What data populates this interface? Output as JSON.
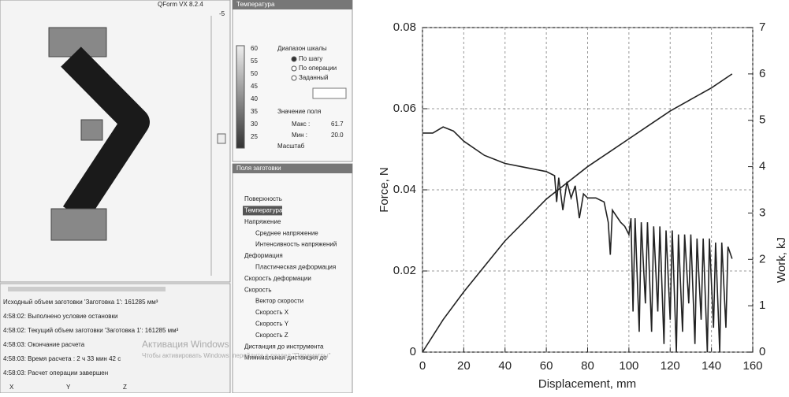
{
  "screenshot": {
    "app_title": "QForm VX 8.2.4",
    "slider_value": "-5",
    "panel_title": "Температура",
    "scale_labels": [
      60,
      55,
      50,
      45,
      40,
      35,
      30,
      25
    ],
    "range_title": "Диапазон шкалы",
    "range_options": [
      "По шагу",
      "По операции",
      "Заданный"
    ],
    "field_value_title": "Значение поля",
    "max_label": "Макс :",
    "max_value": "61.7",
    "min_label": "Мин :",
    "min_value": "20.0",
    "scale_label": "Масштаб",
    "fields_title": "Поля заготовки",
    "tree": [
      "Поверхность",
      "Температура",
      "Напряжение",
      "Среднее напряжение",
      "Интенсивность напряжений",
      "Деформация",
      "Пластическая деформация",
      "Скорость деформации",
      "Скорость",
      "Вектор скорости",
      "Скорость X",
      "Скорость Y",
      "Скорость Z",
      "Дистанция до инструмента",
      "Минимальная дистанция до"
    ],
    "log": [
      "Исходный объем заготовки 'Заготовка 1': 161285 мм³",
      "4:58:02: Выполнено условие остановки",
      "4:58:02: Текущий объем заготовки 'Заготовка 1': 161285 мм³",
      "4:58:03: Окончание расчета",
      "4:58:03: Время расчета : 2 ч 33 мин 42 с",
      "4:58:03: Расчет операции завершен"
    ],
    "watermark": [
      "Активация Windows",
      "Чтобы активировать Windows, перейдите в раздел \"Параметры\""
    ],
    "columns": [
      "X",
      "Y",
      "Z"
    ]
  },
  "chart_data": {
    "type": "line",
    "xlabel": "Displacement, mm",
    "ylabel": "Force, N",
    "y2label": "Work, kJ",
    "xlim": [
      0,
      160
    ],
    "xticks": [
      0,
      20,
      40,
      60,
      80,
      100,
      120,
      140,
      160
    ],
    "ylim": [
      0,
      0.08
    ],
    "yticks": [
      0,
      0.02,
      0.04,
      0.06,
      0.08
    ],
    "y2lim": [
      0,
      7
    ],
    "y2ticks": [
      0,
      1,
      2,
      3,
      4,
      5,
      6,
      7
    ],
    "grid": true,
    "series": [
      {
        "color": "#222222",
        "axis": "y",
        "x": [
          0,
          5,
          10,
          15,
          20,
          30,
          40,
          50,
          60,
          64,
          65,
          66,
          68,
          70,
          72,
          74,
          76,
          78,
          80,
          84,
          88,
          90,
          91,
          92,
          96,
          98,
          100,
          101,
          102,
          103,
          105,
          106,
          108,
          109,
          111,
          112,
          114,
          115,
          117,
          118,
          120,
          121,
          123,
          124,
          126,
          127,
          129,
          130,
          132,
          133,
          135,
          136,
          138,
          139,
          141,
          142,
          144,
          145,
          147,
          148,
          150
        ],
        "values": [
          0.054,
          0.054,
          0.0555,
          0.0545,
          0.052,
          0.0485,
          0.0465,
          0.0455,
          0.0445,
          0.0435,
          0.037,
          0.043,
          0.035,
          0.042,
          0.038,
          0.041,
          0.033,
          0.039,
          0.038,
          0.038,
          0.037,
          0.032,
          0.024,
          0.035,
          0.032,
          0.031,
          0.029,
          0.033,
          0.01,
          0.033,
          0.005,
          0.032,
          0.012,
          0.032,
          0.005,
          0.031,
          0.01,
          0.031,
          0.002,
          0.03,
          0.008,
          0.03,
          0,
          0.029,
          0.005,
          0.029,
          0.012,
          0.029,
          0.002,
          0.028,
          0.008,
          0.028,
          0,
          0.028,
          0.006,
          0.027,
          0,
          0.027,
          0.006,
          0.026,
          0.023
        ]
      },
      {
        "color": "#222222",
        "axis": "y2",
        "x": [
          0,
          10,
          20,
          30,
          40,
          50,
          60,
          70,
          80,
          90,
          100,
          110,
          120,
          130,
          140,
          150
        ],
        "values": [
          0,
          0.7,
          1.3,
          1.85,
          2.4,
          2.85,
          3.3,
          3.65,
          4.0,
          4.3,
          4.6,
          4.9,
          5.2,
          5.45,
          5.7,
          6.0
        ]
      }
    ]
  }
}
